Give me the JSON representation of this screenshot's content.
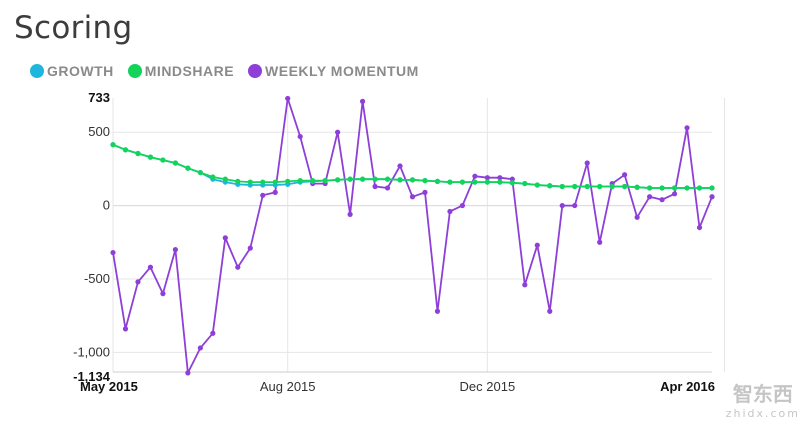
{
  "title": "Scoring",
  "legend": [
    {
      "name": "GROWTH",
      "color": "#1eb6dc"
    },
    {
      "name": "MINDSHARE",
      "color": "#12d45a"
    },
    {
      "name": "WEEKLY MOMENTUM",
      "color": "#8e3fd8"
    }
  ],
  "chart_data": {
    "type": "line",
    "title": "Scoring",
    "xlabel": "",
    "ylabel": "",
    "ylim": [
      -1134,
      733
    ],
    "y_ticks": [
      733,
      500,
      0,
      -500,
      -1000,
      -1134
    ],
    "x_ticks": [
      "May 2015",
      "Aug 2015",
      "Dec 2015",
      "Apr 2016"
    ],
    "x_tick_index": [
      0,
      14,
      30,
      49
    ],
    "grid": true,
    "series": [
      {
        "name": "WEEKLY MOMENTUM",
        "color": "#8e3fd8",
        "values": [
          -320,
          -840,
          -520,
          -420,
          -600,
          -300,
          -1140,
          -970,
          -870,
          -220,
          -420,
          -290,
          70,
          90,
          730,
          470,
          150,
          150,
          500,
          -60,
          710,
          130,
          120,
          270,
          60,
          90,
          -720,
          -40,
          0,
          200,
          190,
          190,
          180,
          -540,
          -270,
          -720,
          0,
          0,
          290,
          -250,
          150,
          210,
          -80,
          60,
          40,
          80,
          530,
          -150,
          60
        ]
      },
      {
        "name": "MINDSHARE",
        "color": "#12d45a",
        "values": [
          415,
          380,
          355,
          330,
          310,
          290,
          255,
          225,
          195,
          180,
          165,
          160,
          160,
          160,
          165,
          170,
          170,
          170,
          175,
          180,
          180,
          180,
          180,
          175,
          175,
          170,
          165,
          160,
          160,
          160,
          160,
          160,
          155,
          150,
          140,
          135,
          130,
          130,
          130,
          130,
          130,
          130,
          125,
          120,
          120,
          120,
          120,
          120,
          120
        ]
      },
      {
        "name": "GROWTH",
        "color": "#1eb6dc",
        "values": [
          415,
          380,
          355,
          330,
          310,
          290,
          255,
          225,
          180,
          160,
          145,
          140,
          140,
          140,
          145,
          160,
          165,
          170,
          175,
          180,
          180,
          180,
          180,
          175,
          175,
          170,
          165,
          160,
          160,
          160,
          160,
          160,
          155,
          150,
          140,
          135,
          130,
          130,
          130,
          130,
          130,
          130,
          125,
          120,
          120,
          120,
          120,
          120,
          120
        ]
      }
    ]
  },
  "watermark": {
    "main": "智东西",
    "sub": "zhidx.com"
  }
}
